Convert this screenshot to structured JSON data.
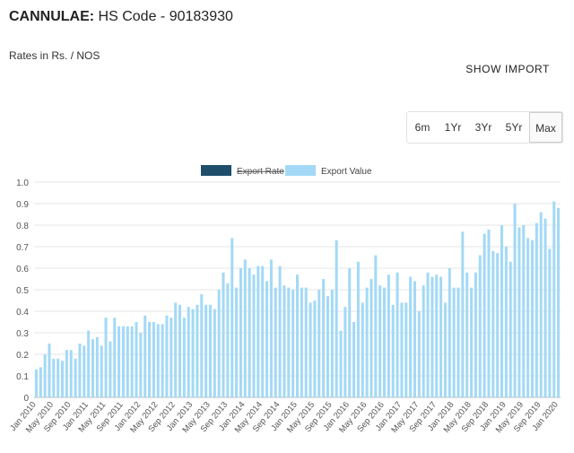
{
  "header": {
    "title_bold": "CANNULAE:",
    "title_rest": " HS Code - 90183930",
    "units": "Rates in Rs. / NOS",
    "show_import": "SHOW IMPORT"
  },
  "range_buttons": [
    {
      "label": "6m",
      "active": false
    },
    {
      "label": "1Yr",
      "active": false
    },
    {
      "label": "3Yr",
      "active": false
    },
    {
      "label": "5Yr",
      "active": false
    },
    {
      "label": "Max",
      "active": true
    }
  ],
  "chart_data": {
    "type": "bar",
    "legend": {
      "placement": "top-center",
      "items": [
        {
          "name": "Export Rate",
          "color": "#1f4e6b",
          "hidden": true
        },
        {
          "name": "Export Value",
          "color": "#a3d9f6",
          "hidden": false
        }
      ]
    },
    "y_ticks": [
      "0",
      "0.1",
      "0.2",
      "0.3",
      "0.4",
      "0.5",
      "0.6",
      "0.7",
      "0.8",
      "0.9",
      "1.0"
    ],
    "ylim": [
      0,
      1.0
    ],
    "grid": true,
    "x_tick_labels": [
      "Jan 2010",
      "May 2010",
      "Sep 2010",
      "Jan 2011",
      "May 2011",
      "Sep 2011",
      "Jan 2012",
      "May 2012",
      "Sep 2012",
      "Jan 2013",
      "May 2013",
      "Sep 2013",
      "Jan 2014",
      "May 2014",
      "Sep 2014",
      "Jan 2015",
      "May 2015",
      "Sep 2015",
      "Jan 2016",
      "May 2016",
      "Sep 2016",
      "Jan 2017",
      "May 2017",
      "Sep 2017",
      "Jan 2018",
      "May 2018",
      "Sep 2018",
      "Jan 2019",
      "May 2019",
      "Sep 2019",
      "Jan 2020"
    ],
    "x_start": "Jan 2010",
    "x_interval": "monthly",
    "series": [
      {
        "name": "Export Value",
        "color": "#a3d9f6",
        "values": [
          0.13,
          0.14,
          0.2,
          0.25,
          0.18,
          0.18,
          0.17,
          0.22,
          0.22,
          0.18,
          0.25,
          0.24,
          0.31,
          0.27,
          0.28,
          0.24,
          0.37,
          0.26,
          0.37,
          0.33,
          0.33,
          0.33,
          0.33,
          0.35,
          0.3,
          0.38,
          0.35,
          0.35,
          0.34,
          0.34,
          0.38,
          0.37,
          0.44,
          0.43,
          0.37,
          0.42,
          0.41,
          0.43,
          0.48,
          0.43,
          0.43,
          0.41,
          0.5,
          0.58,
          0.53,
          0.74,
          0.51,
          0.6,
          0.64,
          0.6,
          0.57,
          0.61,
          0.61,
          0.54,
          0.64,
          0.51,
          0.61,
          0.52,
          0.51,
          0.5,
          0.57,
          0.51,
          0.51,
          0.44,
          0.45,
          0.5,
          0.55,
          0.47,
          0.5,
          0.73,
          0.31,
          0.42,
          0.6,
          0.35,
          0.63,
          0.44,
          0.51,
          0.55,
          0.66,
          0.52,
          0.51,
          0.57,
          0.43,
          0.58,
          0.44,
          0.44,
          0.56,
          0.54,
          0.4,
          0.52,
          0.58,
          0.56,
          0.57,
          0.56,
          0.44,
          0.6,
          0.51,
          0.51,
          0.77,
          0.58,
          0.51,
          0.58,
          0.66,
          0.76,
          0.78,
          0.68,
          0.67,
          0.8,
          0.7,
          0.63,
          0.9,
          0.79,
          0.8,
          0.74,
          0.73,
          0.81,
          0.86,
          0.83,
          0.69,
          0.91,
          0.88
        ]
      }
    ]
  }
}
